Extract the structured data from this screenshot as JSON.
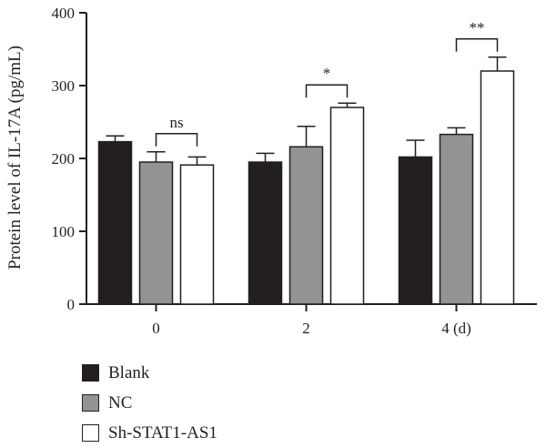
{
  "chart_data": {
    "type": "bar",
    "categories": [
      "0",
      "2",
      "4 (d)"
    ],
    "ylabel": "Protein level of IL-17A (pg/mL)",
    "xlabel": "",
    "ylim": [
      0,
      400
    ],
    "yticks": [
      0,
      100,
      200,
      300,
      400
    ],
    "grid": false,
    "legend_position": "bottom-left",
    "series": [
      {
        "name": "Blank",
        "color": "#231f20",
        "values": [
          223,
          195,
          202
        ],
        "errors": [
          8,
          12,
          23
        ]
      },
      {
        "name": "NC",
        "color": "#939393",
        "values": [
          195,
          216,
          233
        ],
        "errors": [
          14,
          28,
          9
        ]
      },
      {
        "name": "Sh-STAT1-AS1",
        "color": "#ffffff",
        "values": [
          191,
          270,
          320
        ],
        "errors": [
          11,
          6,
          19
        ]
      }
    ],
    "significance": [
      {
        "category": "0",
        "label": "ns"
      },
      {
        "category": "2",
        "label": "*"
      },
      {
        "category": "4 (d)",
        "label": "**"
      }
    ]
  }
}
